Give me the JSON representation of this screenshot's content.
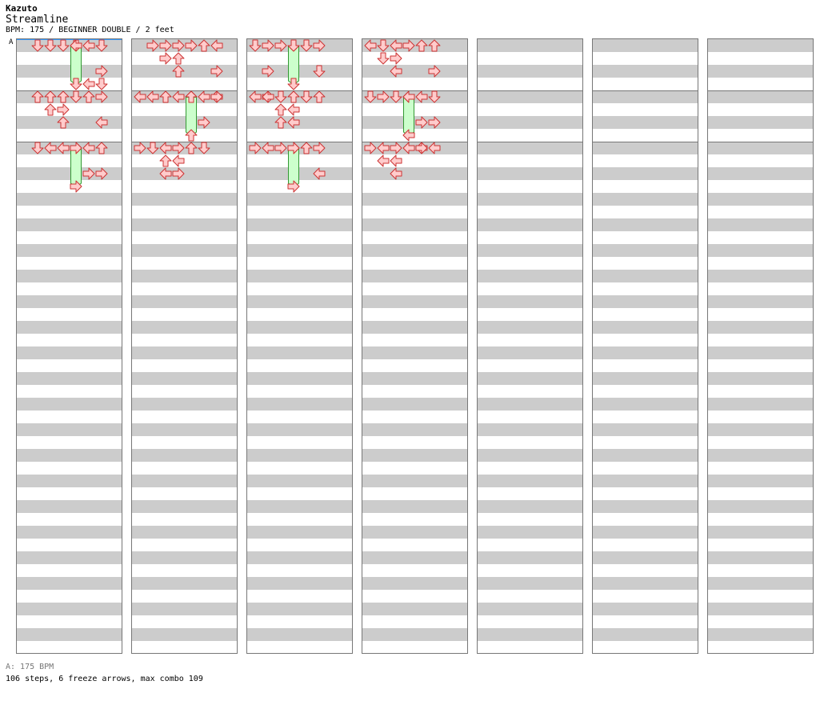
{
  "header": {
    "artist": "Kazuto",
    "title": "Streamline",
    "info": "BPM: 175 / BEGINNER DOUBLE / 2 feet"
  },
  "bpm_marker": {
    "label": "A"
  },
  "footer": {
    "bpm": "A: 175 BPM",
    "stats": "106 steps, 6 freeze arrows, max combo 109"
  },
  "colors": {
    "arrow_fill": "#ffcccc",
    "arrow_stroke": "#cc3333",
    "freeze_fill": "#ccffcc",
    "freeze_stroke": "#339933"
  },
  "chart_data": {
    "type": "step-chart",
    "measures": 56,
    "rows_per_column": 48,
    "lanes": [
      "p1-left",
      "p1-down",
      "p1-up",
      "p1-right",
      "p2-left",
      "p2-down",
      "p2-up",
      "p2-right"
    ],
    "notes": [
      [
        1,
        0,
        "down"
      ],
      [
        2,
        0,
        "down"
      ],
      [
        3,
        0,
        "down"
      ],
      [
        4,
        0,
        "left"
      ],
      [
        5,
        0,
        "left"
      ],
      [
        6,
        0,
        "down"
      ],
      [
        6,
        8,
        "right"
      ],
      [
        5,
        12,
        "left"
      ],
      [
        6,
        12,
        "down"
      ],
      [
        1,
        16,
        "up"
      ],
      [
        2,
        16,
        "up"
      ],
      [
        3,
        16,
        "up"
      ],
      [
        4,
        16,
        "down"
      ],
      [
        5,
        16,
        "up"
      ],
      [
        6,
        16,
        "right"
      ],
      [
        2,
        20,
        "up"
      ],
      [
        3,
        20,
        "right"
      ],
      [
        3,
        24,
        "up"
      ],
      [
        6,
        24,
        "left"
      ],
      [
        1,
        32,
        "down"
      ],
      [
        2,
        32,
        "left"
      ],
      [
        3,
        32,
        "left"
      ],
      [
        4,
        32,
        "right"
      ],
      [
        5,
        32,
        "left"
      ],
      [
        6,
        32,
        "up"
      ],
      [
        5,
        40,
        "right"
      ],
      [
        6,
        40,
        "right"
      ],
      [
        1,
        48,
        "right"
      ],
      [
        2,
        48,
        "right"
      ],
      [
        3,
        48,
        "right"
      ],
      [
        4,
        48,
        "right"
      ],
      [
        5,
        48,
        "up"
      ],
      [
        6,
        48,
        "left"
      ],
      [
        2,
        52,
        "right"
      ],
      [
        3,
        52,
        "up"
      ],
      [
        3,
        56,
        "up"
      ],
      [
        6,
        56,
        "right"
      ],
      [
        0,
        64,
        "left"
      ],
      [
        1,
        64,
        "left"
      ],
      [
        2,
        64,
        "up"
      ],
      [
        3,
        64,
        "left"
      ],
      [
        4,
        64,
        "up"
      ],
      [
        5,
        64,
        "left"
      ],
      [
        6,
        64,
        "left"
      ],
      [
        6,
        64,
        "right"
      ],
      [
        5,
        72,
        "right"
      ],
      [
        0,
        80,
        "right"
      ],
      [
        1,
        80,
        "down"
      ],
      [
        2,
        80,
        "left"
      ],
      [
        3,
        80,
        "right"
      ],
      [
        4,
        80,
        "up"
      ],
      [
        5,
        80,
        "down"
      ],
      [
        2,
        84,
        "up"
      ],
      [
        3,
        84,
        "left"
      ],
      [
        2,
        88,
        "left"
      ],
      [
        3,
        88,
        "right"
      ],
      [
        0,
        96,
        "down"
      ],
      [
        1,
        96,
        "right"
      ],
      [
        2,
        96,
        "right"
      ],
      [
        3,
        96,
        "down"
      ],
      [
        4,
        96,
        "down"
      ],
      [
        5,
        96,
        "right"
      ],
      [
        1,
        104,
        "right"
      ],
      [
        5,
        104,
        "down"
      ],
      [
        0,
        112,
        "left"
      ],
      [
        1,
        112,
        "right"
      ],
      [
        1,
        112,
        "left"
      ],
      [
        2,
        112,
        "down"
      ],
      [
        3,
        112,
        "up"
      ],
      [
        4,
        112,
        "down"
      ],
      [
        5,
        112,
        "up"
      ],
      [
        2,
        116,
        "up"
      ],
      [
        3,
        116,
        "left"
      ],
      [
        2,
        120,
        "up"
      ],
      [
        3,
        120,
        "left"
      ],
      [
        0,
        128,
        "right"
      ],
      [
        1,
        128,
        "left"
      ],
      [
        2,
        128,
        "right"
      ],
      [
        3,
        128,
        "right"
      ],
      [
        4,
        128,
        "up"
      ],
      [
        5,
        128,
        "right"
      ],
      [
        5,
        136,
        "left"
      ],
      [
        0,
        144,
        "left"
      ],
      [
        1,
        144,
        "down"
      ],
      [
        2,
        144,
        "left"
      ],
      [
        3,
        144,
        "right"
      ],
      [
        4,
        144,
        "up"
      ],
      [
        5,
        144,
        "up"
      ],
      [
        1,
        148,
        "down"
      ],
      [
        2,
        148,
        "right"
      ],
      [
        2,
        152,
        "left"
      ],
      [
        5,
        152,
        "right"
      ],
      [
        0,
        160,
        "down"
      ],
      [
        1,
        160,
        "right"
      ],
      [
        2,
        160,
        "down"
      ],
      [
        3,
        160,
        "left"
      ],
      [
        4,
        160,
        "left"
      ],
      [
        5,
        160,
        "down"
      ],
      [
        4,
        168,
        "right"
      ],
      [
        5,
        168,
        "right"
      ],
      [
        0,
        176,
        "right"
      ],
      [
        1,
        176,
        "left"
      ],
      [
        2,
        176,
        "right"
      ],
      [
        3,
        176,
        "left"
      ],
      [
        4,
        176,
        "left"
      ],
      [
        4,
        176,
        "right"
      ],
      [
        5,
        176,
        "left"
      ],
      [
        1,
        180,
        "left"
      ],
      [
        2,
        180,
        "left"
      ],
      [
        2,
        184,
        "left"
      ]
    ],
    "freezes": [
      [
        4,
        0,
        12,
        "down"
      ],
      [
        4,
        32,
        44,
        "right"
      ],
      [
        4,
        64,
        76,
        "up"
      ],
      [
        3,
        96,
        108,
        "down"
      ],
      [
        3,
        128,
        140,
        "right"
      ],
      [
        3,
        160,
        172,
        "left"
      ]
    ]
  }
}
